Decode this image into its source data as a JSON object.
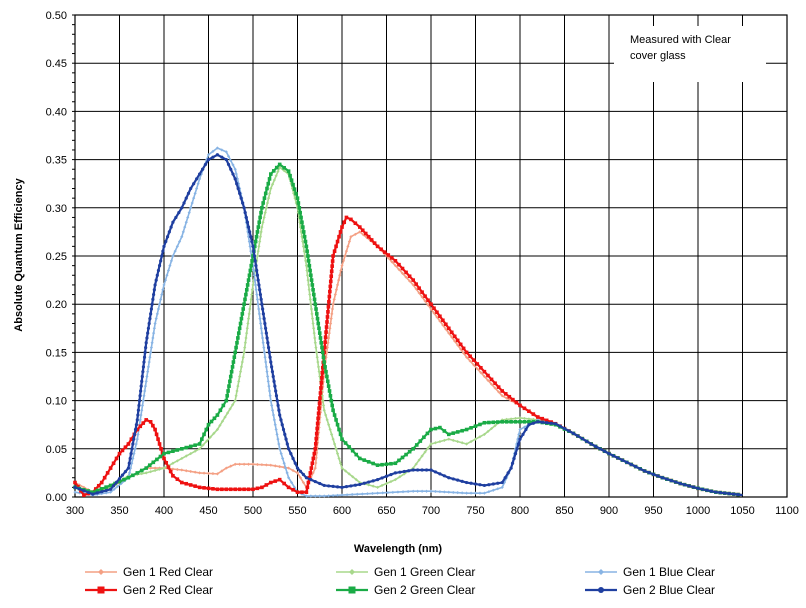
{
  "chart_data": {
    "type": "line",
    "title": "",
    "xlabel": "Wavelength (nm)",
    "ylabel": "Absolute Quantum Efficiency",
    "xlim": [
      300,
      1100
    ],
    "ylim": [
      0,
      0.5
    ],
    "x_ticks": [
      300,
      350,
      400,
      450,
      500,
      550,
      600,
      650,
      700,
      750,
      800,
      850,
      900,
      950,
      1000,
      1050,
      1100
    ],
    "y_ticks": [
      "0.00",
      "0.05",
      "0.10",
      "0.15",
      "0.20",
      "0.25",
      "0.30",
      "0.35",
      "0.40",
      "0.45",
      "0.50"
    ],
    "grid": true,
    "legend_position": "bottom",
    "annotation": {
      "line1": "Measured with Clear",
      "line2": "cover glass"
    },
    "series": [
      {
        "name": "Gen 1 Red Clear",
        "color": "#f4a084",
        "marker": "diamond",
        "width": 1.6,
        "x": [
          300,
          320,
          340,
          360,
          380,
          400,
          420,
          440,
          460,
          470,
          480,
          500,
          520,
          540,
          550,
          560,
          570,
          580,
          590,
          600,
          610,
          620,
          640,
          660,
          680,
          700,
          720,
          740,
          760,
          780,
          800,
          820,
          840,
          860,
          880,
          900,
          920,
          940,
          960,
          980,
          1000,
          1020,
          1040,
          1050
        ],
        "y": [
          0.015,
          0.005,
          0.01,
          0.02,
          0.03,
          0.03,
          0.028,
          0.025,
          0.024,
          0.03,
          0.034,
          0.034,
          0.033,
          0.03,
          0.025,
          0.01,
          0.03,
          0.13,
          0.2,
          0.24,
          0.27,
          0.275,
          0.26,
          0.24,
          0.22,
          0.195,
          0.17,
          0.145,
          0.125,
          0.105,
          0.095,
          0.082,
          0.076,
          0.066,
          0.055,
          0.045,
          0.036,
          0.027,
          0.02,
          0.014,
          0.009,
          0.005,
          0.003,
          0.002
        ]
      },
      {
        "name": "Gen 1 Green Clear",
        "color": "#a8d88c",
        "marker": "diamond",
        "width": 1.6,
        "x": [
          300,
          320,
          340,
          360,
          380,
          400,
          420,
          440,
          460,
          480,
          490,
          500,
          510,
          520,
          530,
          540,
          550,
          560,
          570,
          580,
          600,
          620,
          640,
          660,
          680,
          700,
          720,
          740,
          760,
          780,
          800,
          820,
          840,
          860,
          880,
          900,
          920,
          940,
          960,
          980,
          1000,
          1020,
          1040,
          1050
        ],
        "y": [
          0.01,
          0.003,
          0.01,
          0.022,
          0.025,
          0.03,
          0.04,
          0.05,
          0.07,
          0.1,
          0.15,
          0.22,
          0.28,
          0.32,
          0.342,
          0.335,
          0.3,
          0.24,
          0.16,
          0.09,
          0.03,
          0.015,
          0.01,
          0.018,
          0.03,
          0.055,
          0.06,
          0.055,
          0.065,
          0.08,
          0.082,
          0.08,
          0.076,
          0.066,
          0.055,
          0.045,
          0.036,
          0.027,
          0.02,
          0.014,
          0.009,
          0.005,
          0.003,
          0.002
        ]
      },
      {
        "name": "Gen 1 Blue Clear",
        "color": "#88b4e4",
        "marker": "diamond",
        "width": 1.6,
        "x": [
          300,
          320,
          340,
          360,
          370,
          380,
          390,
          400,
          410,
          420,
          430,
          440,
          450,
          460,
          470,
          480,
          490,
          500,
          510,
          520,
          530,
          540,
          550,
          560,
          580,
          600,
          640,
          680,
          700,
          720,
          740,
          760,
          780,
          790,
          800,
          820,
          840,
          860,
          880,
          900,
          920,
          940,
          960,
          980,
          1000,
          1020,
          1040,
          1050
        ],
        "y": [
          0.005,
          0.002,
          0.005,
          0.02,
          0.06,
          0.12,
          0.18,
          0.22,
          0.25,
          0.27,
          0.3,
          0.33,
          0.355,
          0.362,
          0.358,
          0.34,
          0.3,
          0.24,
          0.17,
          0.1,
          0.05,
          0.02,
          0.005,
          0.001,
          0.001,
          0.002,
          0.004,
          0.006,
          0.006,
          0.005,
          0.004,
          0.004,
          0.01,
          0.03,
          0.07,
          0.08,
          0.076,
          0.066,
          0.055,
          0.045,
          0.036,
          0.027,
          0.02,
          0.014,
          0.009,
          0.005,
          0.003,
          0.002
        ]
      },
      {
        "name": "Gen 2 Red Clear",
        "color": "#ee1111",
        "marker": "square",
        "width": 2.2,
        "x": [
          300,
          310,
          320,
          330,
          340,
          350,
          360,
          370,
          380,
          385,
          390,
          400,
          410,
          420,
          440,
          460,
          480,
          500,
          510,
          520,
          530,
          540,
          550,
          560,
          570,
          580,
          590,
          600,
          605,
          610,
          620,
          630,
          640,
          660,
          680,
          700,
          720,
          740,
          760,
          780,
          800,
          820,
          840,
          860,
          880,
          900,
          920,
          940,
          960,
          980,
          1000,
          1020,
          1040,
          1050
        ],
        "y": [
          0.015,
          0.002,
          0.005,
          0.015,
          0.03,
          0.045,
          0.055,
          0.07,
          0.08,
          0.078,
          0.07,
          0.04,
          0.022,
          0.015,
          0.01,
          0.008,
          0.008,
          0.008,
          0.01,
          0.015,
          0.018,
          0.01,
          0.005,
          0.005,
          0.05,
          0.15,
          0.25,
          0.28,
          0.29,
          0.288,
          0.28,
          0.27,
          0.26,
          0.245,
          0.225,
          0.2,
          0.175,
          0.15,
          0.13,
          0.11,
          0.095,
          0.083,
          0.076,
          0.066,
          0.055,
          0.045,
          0.036,
          0.027,
          0.02,
          0.014,
          0.009,
          0.005,
          0.003,
          0.002
        ]
      },
      {
        "name": "Gen 2 Green Clear",
        "color": "#1aab46",
        "marker": "square",
        "width": 2.2,
        "x": [
          300,
          320,
          340,
          360,
          380,
          400,
          420,
          440,
          450,
          460,
          470,
          480,
          490,
          500,
          510,
          520,
          530,
          540,
          550,
          560,
          570,
          580,
          590,
          600,
          620,
          640,
          660,
          680,
          700,
          710,
          720,
          740,
          760,
          780,
          800,
          820,
          840,
          860,
          880,
          900,
          920,
          940,
          960,
          980,
          1000,
          1020,
          1040,
          1050
        ],
        "y": [
          0.01,
          0.005,
          0.012,
          0.02,
          0.03,
          0.045,
          0.05,
          0.055,
          0.075,
          0.085,
          0.1,
          0.15,
          0.2,
          0.25,
          0.3,
          0.335,
          0.345,
          0.338,
          0.31,
          0.26,
          0.2,
          0.14,
          0.09,
          0.06,
          0.04,
          0.033,
          0.035,
          0.05,
          0.07,
          0.072,
          0.065,
          0.07,
          0.077,
          0.078,
          0.078,
          0.078,
          0.075,
          0.066,
          0.055,
          0.045,
          0.036,
          0.027,
          0.02,
          0.014,
          0.009,
          0.005,
          0.003,
          0.002
        ]
      },
      {
        "name": "Gen 2 Blue Clear",
        "color": "#1f3fa0",
        "marker": "circle",
        "width": 2.2,
        "x": [
          300,
          320,
          340,
          360,
          370,
          380,
          390,
          400,
          410,
          420,
          430,
          440,
          450,
          460,
          470,
          480,
          490,
          500,
          510,
          520,
          530,
          540,
          550,
          560,
          580,
          600,
          620,
          640,
          660,
          680,
          700,
          720,
          740,
          760,
          780,
          790,
          800,
          810,
          820,
          840,
          860,
          880,
          900,
          920,
          940,
          960,
          980,
          1000,
          1020,
          1040,
          1050
        ],
        "y": [
          0.01,
          0.003,
          0.008,
          0.03,
          0.08,
          0.16,
          0.22,
          0.26,
          0.285,
          0.3,
          0.32,
          0.335,
          0.35,
          0.355,
          0.35,
          0.33,
          0.3,
          0.26,
          0.2,
          0.14,
          0.085,
          0.05,
          0.03,
          0.02,
          0.012,
          0.01,
          0.013,
          0.018,
          0.025,
          0.028,
          0.028,
          0.02,
          0.015,
          0.012,
          0.015,
          0.03,
          0.06,
          0.075,
          0.078,
          0.076,
          0.066,
          0.055,
          0.045,
          0.036,
          0.027,
          0.02,
          0.014,
          0.009,
          0.005,
          0.003,
          0.002
        ]
      }
    ]
  }
}
